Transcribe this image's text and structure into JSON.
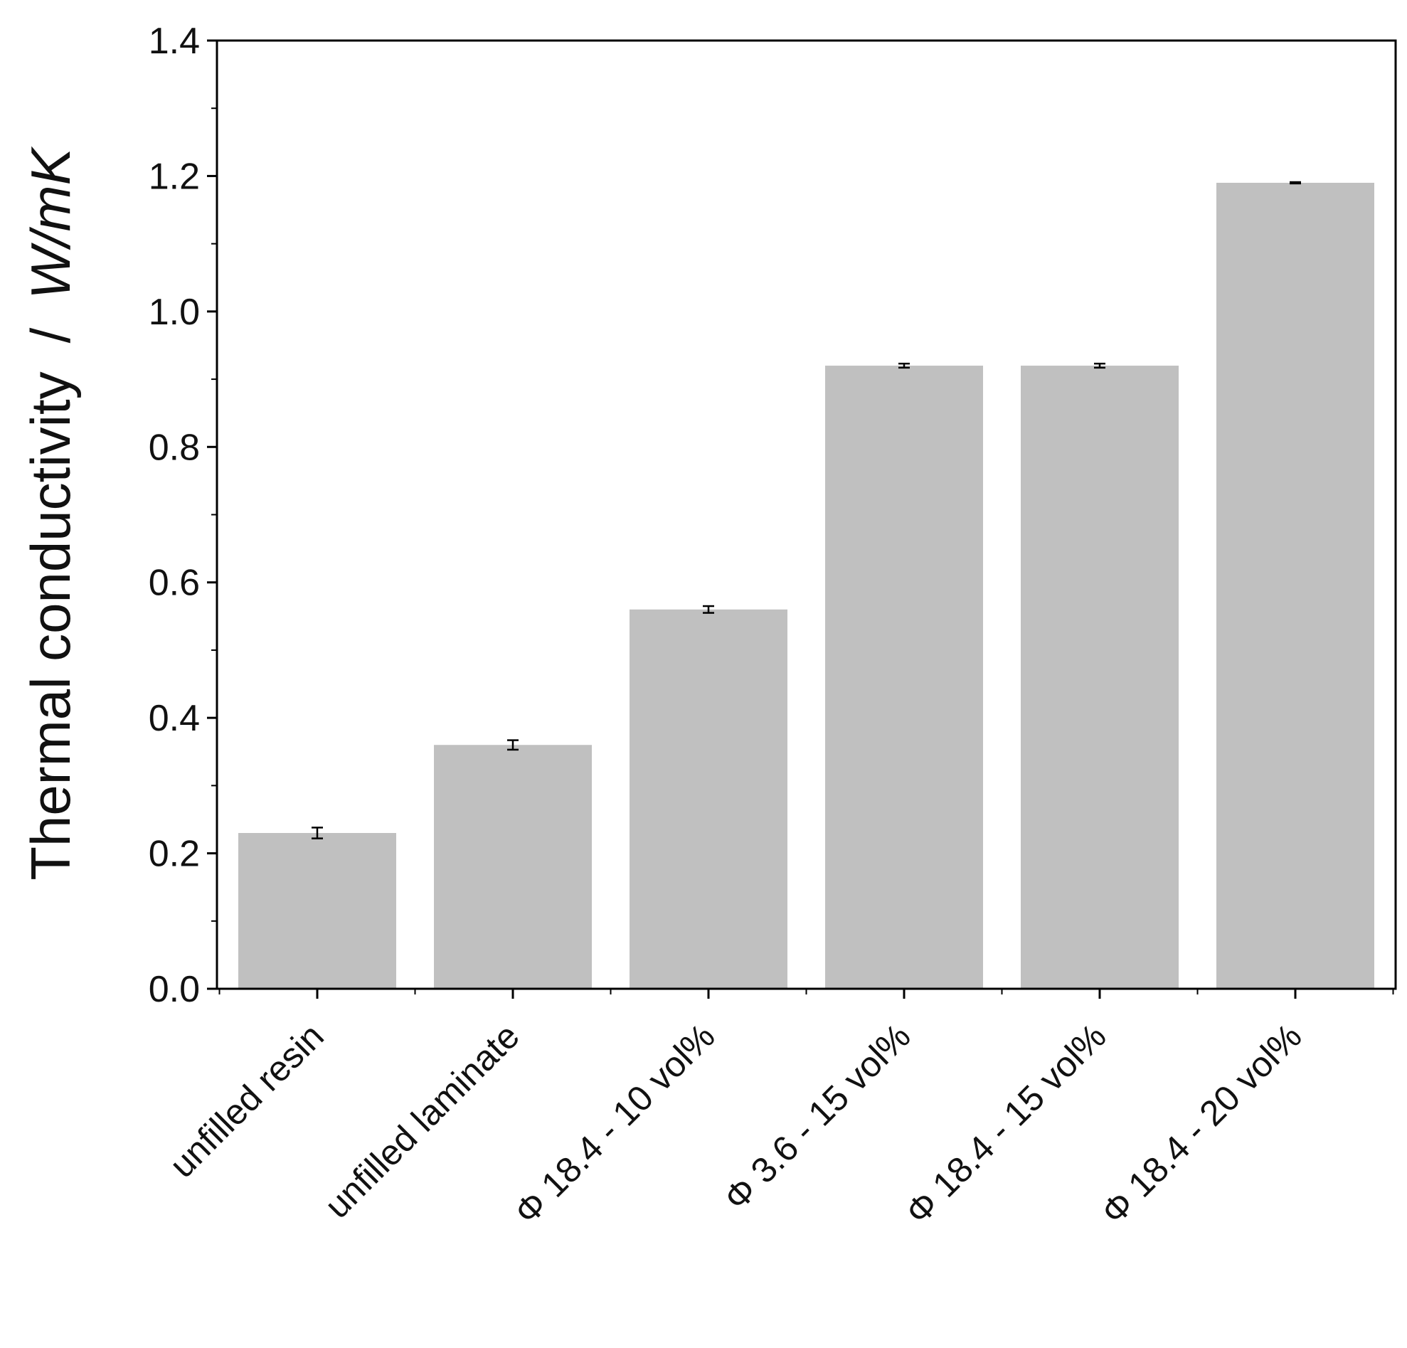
{
  "chart_data": {
    "type": "bar",
    "categories": [
      "unfilled resin",
      "unfilled laminate",
      "Φ 18.4 - 10 vol%",
      "Φ 3.6 - 15 vol%",
      "Φ 18.4 - 15 vol%",
      "Φ 18.4 - 20 vol%"
    ],
    "values": [
      0.23,
      0.36,
      0.56,
      0.92,
      0.92,
      1.19
    ],
    "errors": [
      0.008,
      0.007,
      0.005,
      0.003,
      0.003,
      0.001
    ],
    "xlabel": "",
    "ylabel": "Thermal conductivity",
    "ylabel_separator": "/",
    "ylabel_unit": "W/mK",
    "ylim": [
      0,
      1.4
    ],
    "yticks": [
      "0.0",
      "0.2",
      "0.4",
      "0.6",
      "0.8",
      "1.0",
      "1.2",
      "1.4"
    ],
    "grid": false,
    "bar_color": "#c0c0c0",
    "error_bar_color": "#000000"
  }
}
